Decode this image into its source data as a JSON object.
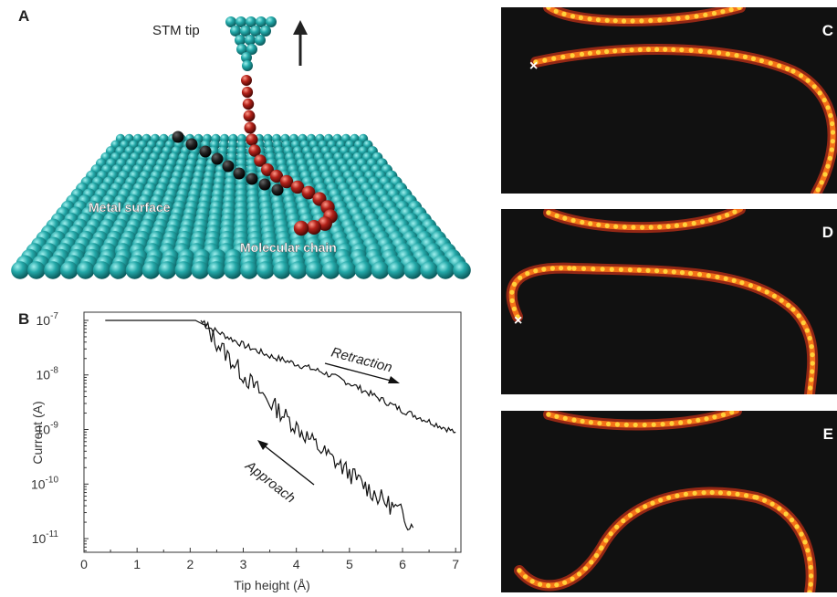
{
  "panel_a": {
    "letter": "A",
    "stm_tip_label": "STM tip",
    "metal_surface_label": "Metal surface",
    "molecular_chain_label": "Molecular chain",
    "colors": {
      "surface": "#1f9e9e",
      "chain": "#b3221a",
      "chain_flat": "#1a1a1a"
    }
  },
  "panel_b": {
    "letter": "B",
    "retraction_label": "Retraction",
    "approach_label": "Approach"
  },
  "chart_data": {
    "type": "line",
    "xlabel": "Tip height (Å)",
    "ylabel": "Current (A)",
    "xlim": [
      0,
      7.1
    ],
    "ylim_log10": [
      -11.25,
      -6.85
    ],
    "yscale": "log",
    "x_ticks": [
      "0",
      "1",
      "2",
      "3",
      "4",
      "5",
      "6",
      "7"
    ],
    "y_ticks": [
      {
        "base": "10",
        "exp": "-7"
      },
      {
        "base": "10",
        "exp": "-8"
      },
      {
        "base": "10",
        "exp": "-9"
      },
      {
        "base": "10",
        "exp": "-10"
      },
      {
        "base": "10",
        "exp": "-11"
      }
    ],
    "series": [
      {
        "label": "Retraction",
        "x": [
          0.4,
          1.8,
          2.1,
          2.5,
          3.0,
          3.5,
          4.0,
          4.5,
          5.0,
          5.5,
          6.0,
          6.5,
          7.0
        ],
        "log10_y": [
          -7.0,
          -7.0,
          -7.0,
          -7.2,
          -7.45,
          -7.65,
          -7.8,
          -7.95,
          -8.15,
          -8.4,
          -8.65,
          -8.85,
          -9.05
        ]
      },
      {
        "label": "Approach",
        "x": [
          2.2,
          2.5,
          3.0,
          3.5,
          4.0,
          4.5,
          5.0,
          5.5,
          6.0,
          6.2
        ],
        "log10_y": [
          -7.0,
          -7.4,
          -8.0,
          -8.5,
          -8.95,
          -9.4,
          -9.8,
          -10.2,
          -10.55,
          -10.8
        ]
      }
    ]
  },
  "panel_c": {
    "letter": "C",
    "marker": "×"
  },
  "panel_d": {
    "letter": "D",
    "marker": "×"
  },
  "panel_e": {
    "letter": "E"
  },
  "colors": {
    "stm_background": "#111111",
    "stm_glow": "#ff3b1a",
    "stm_core": "#ffd23a",
    "plot_line": "#111111"
  }
}
